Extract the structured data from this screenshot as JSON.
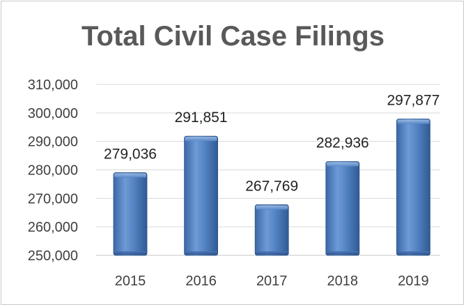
{
  "chart_data": {
    "type": "bar",
    "title": "Total Civil Case Filings",
    "categories": [
      "2015",
      "2016",
      "2017",
      "2018",
      "2019"
    ],
    "values": [
      279036,
      291851,
      267769,
      282936,
      297877
    ],
    "value_labels": [
      "279,036",
      "291,851",
      "267,769",
      "282,936",
      "297,877"
    ],
    "ylim": [
      250000,
      310000
    ],
    "yticks": [
      250000,
      260000,
      270000,
      280000,
      290000,
      300000,
      310000
    ],
    "ytick_labels": [
      "250,000",
      "260,000",
      "270,000",
      "280,000",
      "290,000",
      "300,000",
      "310,000"
    ],
    "xlabel": "",
    "ylabel": "",
    "grid": true,
    "bar_color": "#4f81bd"
  }
}
